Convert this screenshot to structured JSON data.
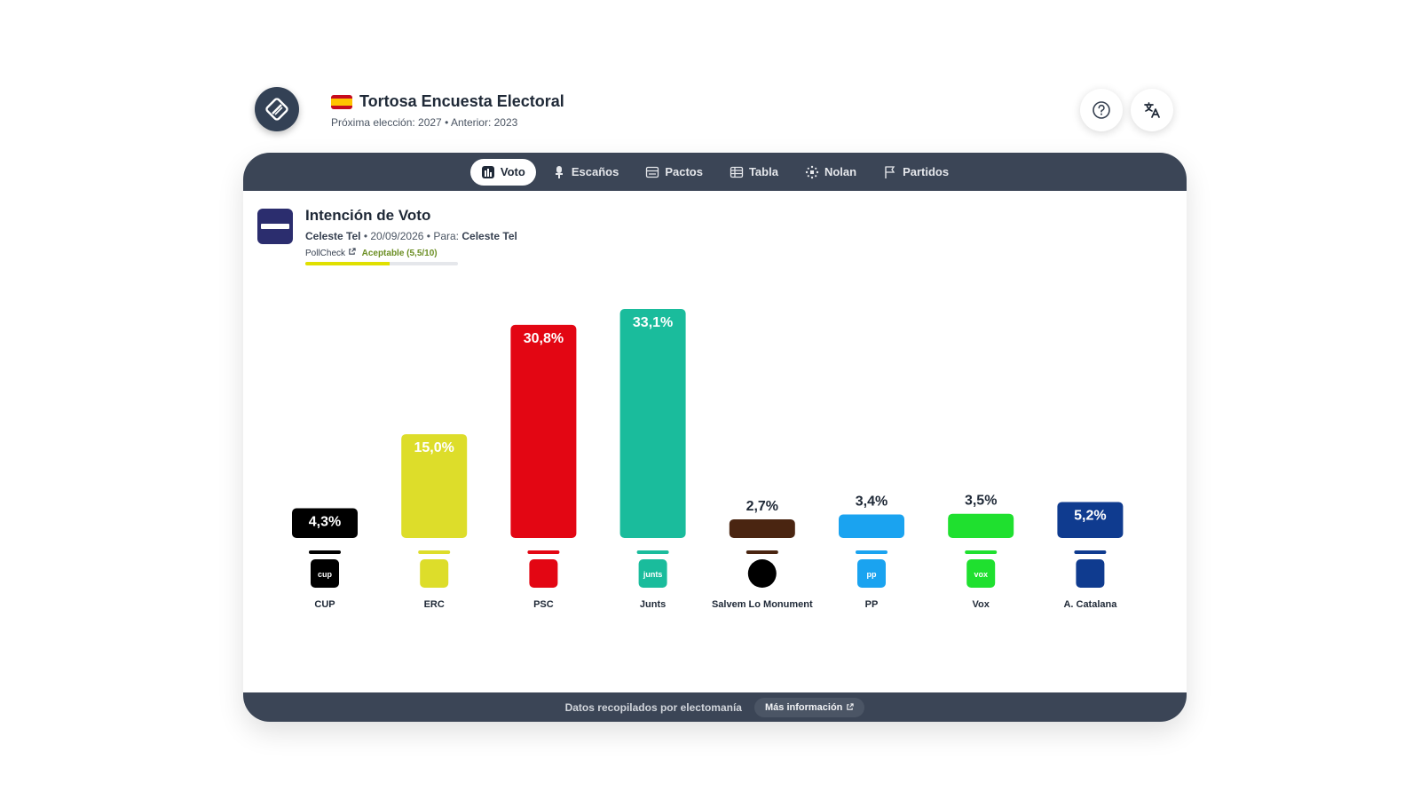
{
  "header": {
    "title": "Tortosa Encuesta Electoral",
    "subtitle": "Próxima elección: 2027 • Anterior: 2023",
    "help_icon": "question-circle-icon",
    "lang_icon": "translate-icon"
  },
  "tabs": [
    {
      "label": "Voto",
      "icon": "bar-chart-icon",
      "active": true
    },
    {
      "label": "Escaños",
      "icon": "seat-icon",
      "active": false
    },
    {
      "label": "Pactos",
      "icon": "pact-icon",
      "active": false
    },
    {
      "label": "Tabla",
      "icon": "table-icon",
      "active": false
    },
    {
      "label": "Nolan",
      "icon": "nolan-icon",
      "active": false
    },
    {
      "label": "Partidos",
      "icon": "flag-icon",
      "active": false
    }
  ],
  "poll": {
    "title": "Intención de Voto",
    "pollster": "Celeste Tel",
    "date": "20/09/2026",
    "for_label": "Para:",
    "for_value": "Celeste Tel",
    "pollcheck_label": "PollCheck",
    "rating": "Aceptable (5,5/10)",
    "rating_score": 0.55
  },
  "chart_data": {
    "type": "bar",
    "categories": [
      "CUP",
      "ERC",
      "PSC",
      "Junts",
      "Salvem Lo Monument",
      "PP",
      "Vox",
      "A. Catalana"
    ],
    "values": [
      4.3,
      15.0,
      30.8,
      33.1,
      2.7,
      3.4,
      3.5,
      5.2
    ],
    "labels": [
      "4,3%",
      "15,0%",
      "30,8%",
      "33,1%",
      "2,7%",
      "3,4%",
      "3,5%",
      "5,2%"
    ],
    "colors": [
      "#000000",
      "#dddd2a",
      "#e30613",
      "#1abc9c",
      "#4a2511",
      "#1aa3f0",
      "#1fe02f",
      "#0f3b8f"
    ],
    "party_logos": [
      "cup-logo",
      "erc-logo",
      "psc-logo",
      "junts-logo",
      "salvem-logo",
      "pp-logo",
      "vox-logo",
      "aliança-catalana-logo"
    ],
    "title": "",
    "xlabel": "",
    "ylabel": ""
  },
  "footer": {
    "text": "Datos recopilados por electomanía",
    "button": "Más información"
  }
}
